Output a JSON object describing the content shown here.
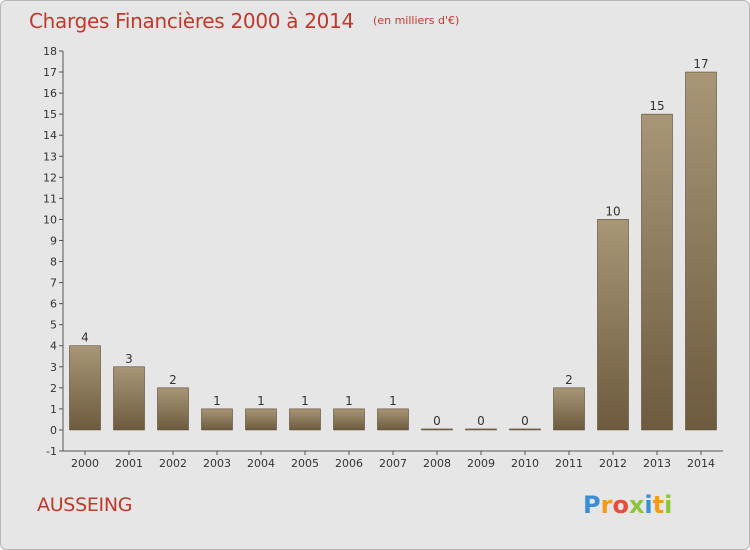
{
  "header": {
    "title": "Charges Financières 2000 à 2014",
    "subtitle": "(en milliers d'€)"
  },
  "footer": {
    "commune": "AUSSEING",
    "logo_letters": [
      {
        "char": "P",
        "color": "#3a8fd6"
      },
      {
        "char": "r",
        "color": "#f39c12"
      },
      {
        "char": "o",
        "color": "#e74c3c"
      },
      {
        "char": "x",
        "color": "#8cc63f"
      },
      {
        "char": "i",
        "color": "#3a8fd6"
      },
      {
        "char": "t",
        "color": "#f39c12"
      },
      {
        "char": "i",
        "color": "#8cc63f"
      }
    ]
  },
  "colors": {
    "bar_top": "#a89677",
    "bar_bottom": "#6e5b3f",
    "background": "#e6e6e6",
    "title": "#c0392b"
  },
  "chart_data": {
    "type": "bar",
    "title": "Charges Financières 2000 à 2014",
    "subtitle": "(en milliers d'€)",
    "categories": [
      "2000",
      "2001",
      "2002",
      "2003",
      "2004",
      "2005",
      "2006",
      "2007",
      "2008",
      "2009",
      "2010",
      "2011",
      "2012",
      "2013",
      "2014"
    ],
    "values": [
      4,
      3,
      2,
      1,
      1,
      1,
      1,
      1,
      0,
      0,
      0,
      2,
      10,
      15,
      17
    ],
    "value_labels": [
      "4",
      "3",
      "2",
      "1",
      "1",
      "1",
      "1",
      "1",
      "0",
      "0",
      "0",
      "2",
      "10",
      "15",
      "17"
    ],
    "y_ticks": [
      "-1",
      "0",
      "1",
      "2",
      "3",
      "4",
      "5",
      "6",
      "7",
      "8",
      "9",
      "10",
      "11",
      "12",
      "13",
      "14",
      "15",
      "16",
      "17",
      "18"
    ],
    "ylim": [
      -1,
      18
    ],
    "xlabel": "",
    "ylabel": "",
    "grid": false,
    "legend": "none"
  }
}
